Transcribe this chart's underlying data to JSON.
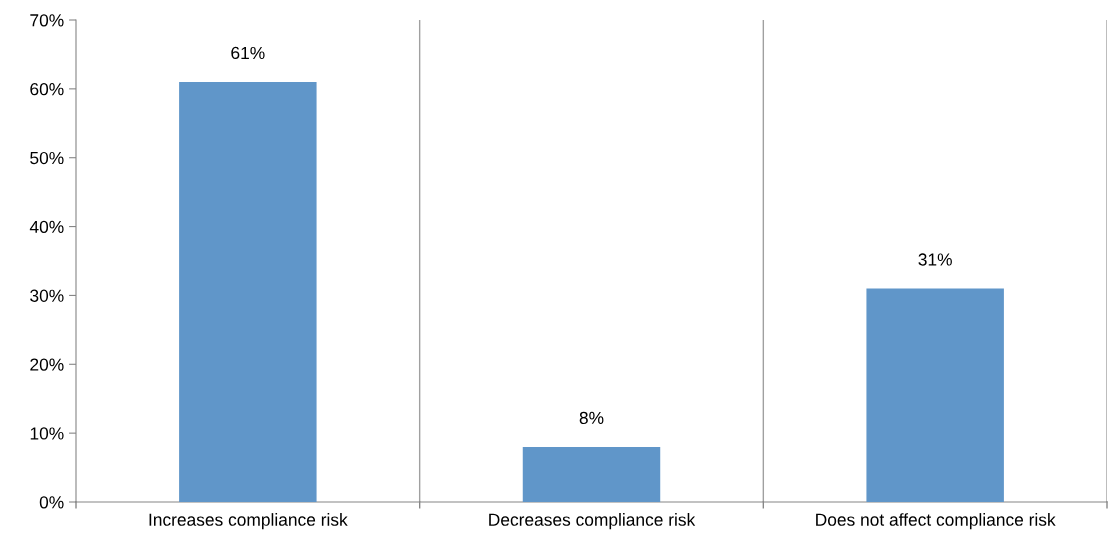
{
  "chart_data": {
    "type": "bar",
    "categories": [
      "Increases compliance risk",
      "Decreases compliance risk",
      "Does not affect compliance risk"
    ],
    "values": [
      61,
      8,
      31
    ],
    "value_labels": [
      "61%",
      "8%",
      "31%"
    ],
    "color": "#6096c9",
    "ylim": [
      0,
      70
    ],
    "yticks": [
      {
        "value": 0,
        "label": "0%"
      },
      {
        "value": 10,
        "label": "10%"
      },
      {
        "value": 20,
        "label": "20%"
      },
      {
        "value": 30,
        "label": "30%"
      },
      {
        "value": 40,
        "label": "40%"
      },
      {
        "value": 50,
        "label": "50%"
      },
      {
        "value": 60,
        "label": "60%"
      },
      {
        "value": 70,
        "label": "70%"
      }
    ],
    "grid": "x",
    "legend": false
  }
}
